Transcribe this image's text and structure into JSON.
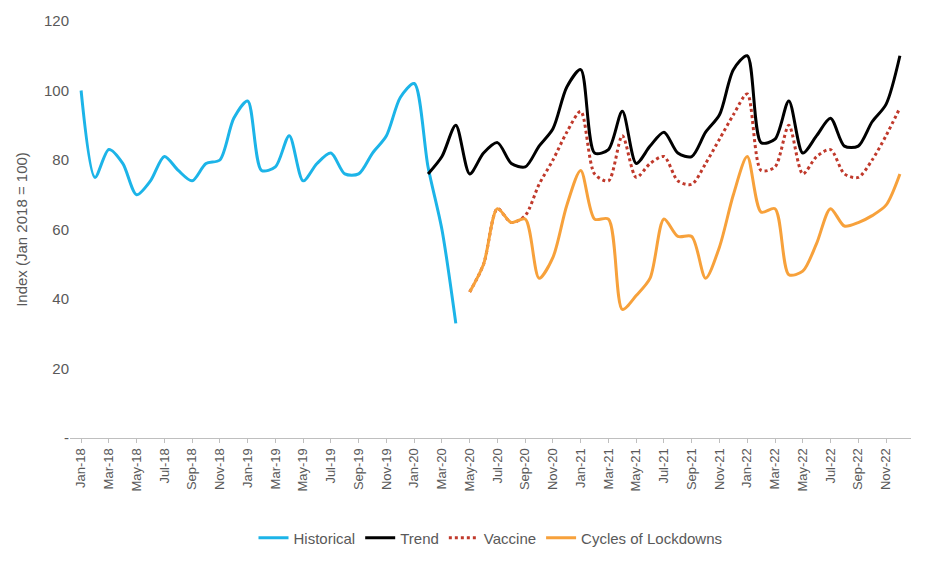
{
  "chart_data": {
    "type": "line",
    "y_label": "Index (Jan 2018 = 100)",
    "categories": [
      "Jan-18",
      null,
      "Mar-18",
      null,
      "May-18",
      null,
      "Jul-18",
      null,
      "Sep-18",
      null,
      "Nov-18",
      null,
      "Jan-19",
      null,
      "Mar-19",
      null,
      "May-19",
      null,
      "Jul-19",
      null,
      "Sep-19",
      null,
      "Nov-19",
      null,
      "Jan-20",
      null,
      "Mar-20",
      null,
      "May-20",
      null,
      "Jul-20",
      null,
      "Sep-20",
      null,
      "Nov-20",
      null,
      "Jan-21",
      null,
      "Mar-21",
      null,
      "May-21",
      null,
      "Jul-21",
      null,
      "Sep-21",
      null,
      "Nov-21",
      null,
      "Jan-22",
      null,
      "Mar-22",
      null,
      "May-22",
      null,
      "Jul-22",
      null,
      "Sep-22",
      null,
      "Nov-22",
      null
    ],
    "series": [
      {
        "name": "Historical",
        "color": "#1cb4e8",
        "line_style": "solid",
        "values": [
          100,
          75,
          83,
          79,
          70,
          74,
          81,
          77,
          74,
          79,
          80,
          92,
          97,
          77,
          78,
          87,
          74,
          79,
          82,
          76,
          76,
          82,
          87,
          98,
          102,
          78,
          60,
          33,
          null,
          null,
          null,
          null,
          null,
          null,
          null,
          null,
          null,
          null,
          null,
          null,
          null,
          null,
          null,
          null,
          null,
          null,
          null,
          null,
          null,
          null,
          null,
          null,
          null,
          null,
          null,
          null,
          null,
          null,
          null,
          null
        ]
      },
      {
        "name": "Trend",
        "color": "#000000",
        "line_style": "solid",
        "values": [
          null,
          null,
          null,
          null,
          null,
          null,
          null,
          null,
          null,
          null,
          null,
          null,
          null,
          null,
          null,
          null,
          null,
          null,
          null,
          null,
          null,
          null,
          null,
          null,
          null,
          76,
          81,
          90,
          76,
          82,
          85,
          79,
          78,
          84,
          89,
          101,
          106,
          82,
          83,
          94,
          79,
          84,
          88,
          82,
          81,
          88,
          93,
          106,
          110,
          85,
          86,
          97,
          82,
          87,
          92,
          84,
          84,
          91,
          96,
          110
        ]
      },
      {
        "name": "Vaccine",
        "color": "#c0392b",
        "line_style": "dot",
        "values": [
          null,
          null,
          null,
          null,
          null,
          null,
          null,
          null,
          null,
          null,
          null,
          null,
          null,
          null,
          null,
          null,
          null,
          null,
          null,
          null,
          null,
          null,
          null,
          null,
          null,
          null,
          null,
          null,
          42,
          50,
          66,
          62,
          64,
          73,
          80,
          88,
          94,
          76,
          74,
          87,
          75,
          79,
          81,
          74,
          73,
          79,
          86,
          93,
          99,
          77,
          78,
          90,
          76,
          81,
          83,
          76,
          75,
          80,
          87,
          95
        ]
      },
      {
        "name": "Cycles of Lockdowns",
        "color": "#f7a13b",
        "line_style": "solid",
        "values": [
          null,
          null,
          null,
          null,
          null,
          null,
          null,
          null,
          null,
          null,
          null,
          null,
          null,
          null,
          null,
          null,
          null,
          null,
          null,
          null,
          null,
          null,
          null,
          null,
          null,
          null,
          null,
          null,
          42,
          50,
          66,
          62,
          63,
          46,
          52,
          67,
          77,
          63,
          63,
          37,
          41,
          46,
          63,
          58,
          58,
          46,
          55,
          70,
          81,
          65,
          66,
          47,
          48,
          56,
          66,
          61,
          62,
          64,
          67,
          76
        ]
      }
    ],
    "ylim": [
      0,
      120
    ],
    "yticks": [
      {
        "value": 0,
        "label": "-"
      },
      20,
      40,
      60,
      80,
      100,
      120
    ],
    "grid": false,
    "legend": "bottom"
  }
}
